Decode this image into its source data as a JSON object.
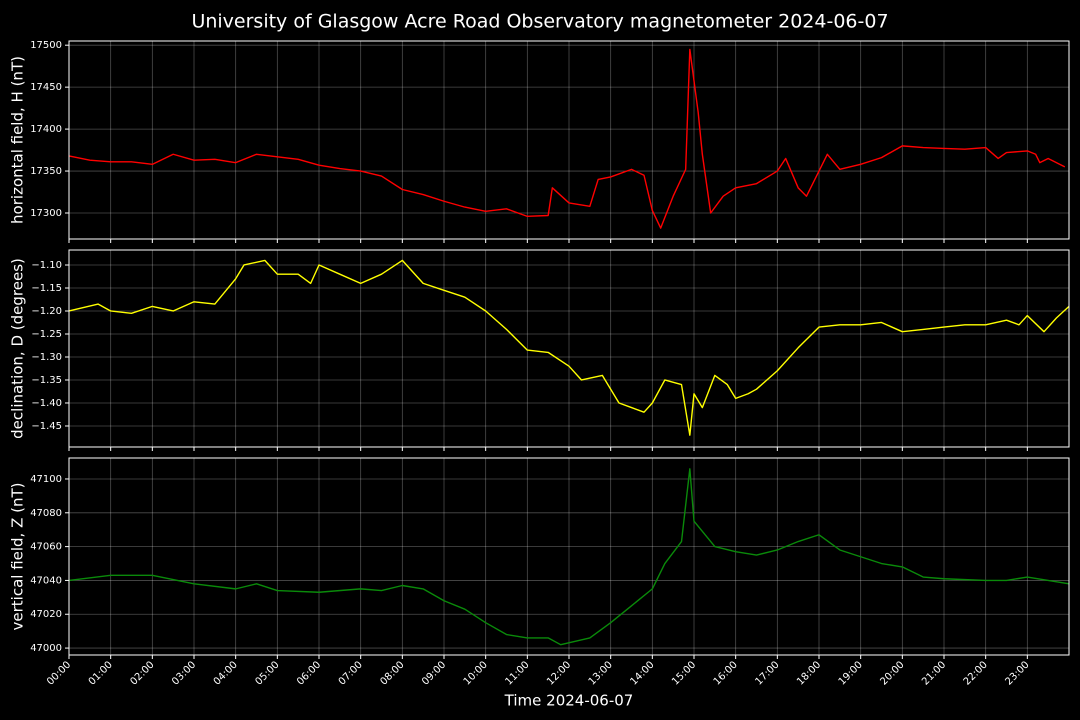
{
  "title": "University of Glasgow Acre Road Observatory magnetometer 2024-06-07",
  "chart_data": [
    {
      "type": "line",
      "ylabel": "horizontal field, H (nT)",
      "color": "#ff0000",
      "grid": true,
      "xlim": [
        0,
        24
      ],
      "ylim": [
        17269,
        17505
      ],
      "yticks": [
        17300,
        17350,
        17400,
        17450,
        17500
      ],
      "xticks": [
        0,
        1,
        2,
        3,
        4,
        5,
        6,
        7,
        8,
        9,
        10,
        11,
        12,
        13,
        14,
        15,
        16,
        17,
        18,
        19,
        20,
        21,
        22,
        23
      ],
      "x": [
        0,
        0.5,
        1,
        1.5,
        2,
        2.5,
        3,
        3.5,
        4,
        4.5,
        5,
        5.5,
        6,
        6.5,
        7,
        7.5,
        8,
        8.5,
        9,
        9.5,
        10,
        10.5,
        11,
        11.5,
        11.6,
        12,
        12.5,
        12.7,
        13,
        13.5,
        13.8,
        14,
        14.2,
        14.5,
        14.8,
        14.9,
        15.1,
        15.2,
        15.4,
        15.7,
        16,
        16.5,
        17,
        17.2,
        17.5,
        17.7,
        18,
        18.2,
        18.5,
        19,
        19.5,
        20,
        20.5,
        21,
        21.5,
        22,
        22.3,
        22.5,
        23,
        23.2,
        23.3,
        23.5,
        23.9
      ],
      "values": [
        17368,
        17363,
        17361,
        17361,
        17358,
        17370,
        17363,
        17364,
        17360,
        17370,
        17367,
        17364,
        17357,
        17353,
        17350,
        17344,
        17328,
        17322,
        17314,
        17307,
        17302,
        17305,
        17296,
        17297,
        17330,
        17312,
        17308,
        17340,
        17343,
        17352,
        17345,
        17303,
        17282,
        17320,
        17352,
        17495,
        17420,
        17370,
        17300,
        17320,
        17330,
        17335,
        17350,
        17365,
        17330,
        17320,
        17350,
        17370,
        17352,
        17358,
        17366,
        17380,
        17378,
        17377,
        17376,
        17378,
        17365,
        17372,
        17374,
        17370,
        17360,
        17365,
        17355
      ]
    },
    {
      "type": "line",
      "ylabel": "declination, D (degrees)",
      "color": "#ffff00",
      "grid": true,
      "xlim": [
        0,
        24
      ],
      "ylim": [
        -1.4957,
        -1.0674
      ],
      "yticks": [
        {
          "value": -1.45,
          "label": "−1.45"
        },
        {
          "value": -1.4,
          "label": "−1.40"
        },
        {
          "value": -1.35,
          "label": "−1.35"
        },
        {
          "value": -1.3,
          "label": "−1.30"
        },
        {
          "value": -1.25,
          "label": "−1.25"
        },
        {
          "value": -1.2,
          "label": "−1.20"
        },
        {
          "value": -1.15,
          "label": "−1.15"
        },
        {
          "value": -1.1,
          "label": "−1.10"
        }
      ],
      "xticks": [
        0,
        1,
        2,
        3,
        4,
        5,
        6,
        7,
        8,
        9,
        10,
        11,
        12,
        13,
        14,
        15,
        16,
        17,
        18,
        19,
        20,
        21,
        22,
        23
      ],
      "x": [
        0,
        0.7,
        1,
        1.5,
        2,
        2.5,
        3,
        3.5,
        4,
        4.2,
        4.7,
        5,
        5.5,
        5.8,
        6,
        6.5,
        7,
        7.5,
        8,
        8.5,
        9,
        9.5,
        10,
        10.5,
        11,
        11.5,
        12,
        12.3,
        12.8,
        13.2,
        13.5,
        13.8,
        14,
        14.3,
        14.7,
        14.9,
        15,
        15.2,
        15.5,
        15.8,
        16,
        16.3,
        16.5,
        17,
        17.5,
        18,
        18.5,
        19,
        19.5,
        20,
        20.5,
        21,
        21.5,
        22,
        22.5,
        22.8,
        23,
        23.4,
        23.7,
        24
      ],
      "values": [
        -1.2,
        -1.185,
        -1.2,
        -1.205,
        -1.19,
        -1.2,
        -1.18,
        -1.185,
        -1.13,
        -1.1,
        -1.09,
        -1.12,
        -1.12,
        -1.14,
        -1.1,
        -1.12,
        -1.14,
        -1.12,
        -1.09,
        -1.14,
        -1.155,
        -1.17,
        -1.2,
        -1.24,
        -1.285,
        -1.29,
        -1.32,
        -1.35,
        -1.34,
        -1.4,
        -1.41,
        -1.42,
        -1.4,
        -1.35,
        -1.36,
        -1.47,
        -1.38,
        -1.41,
        -1.34,
        -1.36,
        -1.39,
        -1.38,
        -1.37,
        -1.33,
        -1.28,
        -1.235,
        -1.23,
        -1.23,
        -1.225,
        -1.245,
        -1.24,
        -1.235,
        -1.23,
        -1.23,
        -1.22,
        -1.23,
        -1.21,
        -1.245,
        -1.215,
        -1.19
      ]
    },
    {
      "type": "line",
      "ylabel": "vertical field, Z (nT)",
      "xlabel": "Time 2024-06-07",
      "color": "#0a8a0a",
      "grid": true,
      "xlim": [
        0,
        24
      ],
      "ylim": [
        46995.9,
        47112.4
      ],
      "yticks": [
        47000,
        47020,
        47040,
        47060,
        47080,
        47100
      ],
      "xticks": [
        {
          "value": 0,
          "label": "00:00"
        },
        {
          "value": 1,
          "label": "01:00"
        },
        {
          "value": 2,
          "label": "02:00"
        },
        {
          "value": 3,
          "label": "03:00"
        },
        {
          "value": 4,
          "label": "04:00"
        },
        {
          "value": 5,
          "label": "05:00"
        },
        {
          "value": 6,
          "label": "06:00"
        },
        {
          "value": 7,
          "label": "07:00"
        },
        {
          "value": 8,
          "label": "08:00"
        },
        {
          "value": 9,
          "label": "09:00"
        },
        {
          "value": 10,
          "label": "10:00"
        },
        {
          "value": 11,
          "label": "11:00"
        },
        {
          "value": 12,
          "label": "12:00"
        },
        {
          "value": 13,
          "label": "13:00"
        },
        {
          "value": 14,
          "label": "14:00"
        },
        {
          "value": 15,
          "label": "15:00"
        },
        {
          "value": 16,
          "label": "16:00"
        },
        {
          "value": 17,
          "label": "17:00"
        },
        {
          "value": 18,
          "label": "18:00"
        },
        {
          "value": 19,
          "label": "19:00"
        },
        {
          "value": 20,
          "label": "20:00"
        },
        {
          "value": 21,
          "label": "21:00"
        },
        {
          "value": 22,
          "label": "22:00"
        },
        {
          "value": 23,
          "label": "23:00"
        }
      ],
      "x": [
        0,
        1,
        2,
        3,
        4,
        4.5,
        5,
        6,
        7,
        7.5,
        8,
        8.5,
        9,
        9.5,
        10,
        10.5,
        11,
        11.5,
        11.8,
        12.5,
        13,
        13.5,
        14,
        14.3,
        14.7,
        14.9,
        15,
        15.5,
        16,
        16.5,
        17,
        17.5,
        18,
        18.5,
        19,
        19.5,
        20,
        20.5,
        21,
        22,
        22.5,
        23,
        23.5,
        24
      ],
      "values": [
        47040,
        47043,
        47043,
        47038,
        47035,
        47038,
        47034,
        47033,
        47035,
        47034,
        47037,
        47035,
        47028,
        47023,
        47015,
        47008,
        47006,
        47006,
        47002,
        47006,
        47015,
        47025,
        47035,
        47050,
        47063,
        47106,
        47075,
        47060,
        47057,
        47055,
        47058,
        47063,
        47067,
        47058,
        47054,
        47050,
        47048,
        47042,
        47041,
        47040,
        47040,
        47042,
        47040,
        47038
      ]
    }
  ]
}
